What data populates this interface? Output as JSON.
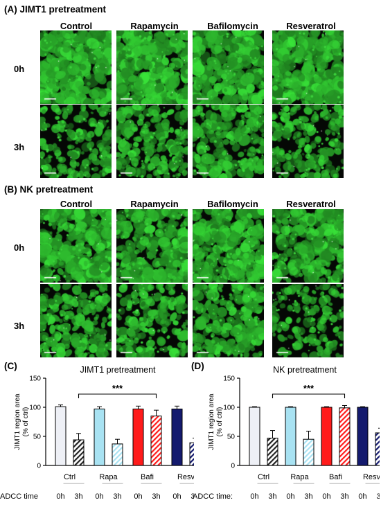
{
  "panels": [
    {
      "letter": "(A)",
      "title": "JIMT1 pretreatment",
      "columns": [
        "Control",
        "Rapamycin",
        "Bafilomycin",
        "Resveratrol"
      ],
      "rows": [
        "0h",
        "3h"
      ],
      "images": [
        [
          {
            "cell_density": 0.85
          },
          {
            "cell_density": 0.82
          },
          {
            "cell_density": 0.78
          },
          {
            "cell_density": 0.8
          }
        ],
        [
          {
            "cell_density": 0.35
          },
          {
            "cell_density": 0.42
          },
          {
            "cell_density": 0.5
          },
          {
            "cell_density": 0.35
          }
        ]
      ]
    },
    {
      "letter": "(B)",
      "title": "NK pretreatment",
      "columns": [
        "Control",
        "Rapamycin",
        "Bafilomycin",
        "Resveratrol"
      ],
      "rows": [
        "0h",
        "3h"
      ],
      "images": [
        [
          {
            "cell_density": 0.75
          },
          {
            "cell_density": 0.72
          },
          {
            "cell_density": 0.75
          },
          {
            "cell_density": 0.65
          }
        ],
        [
          {
            "cell_density": 0.45
          },
          {
            "cell_density": 0.4
          },
          {
            "cell_density": 0.55
          },
          {
            "cell_density": 0.28
          }
        ]
      ]
    }
  ],
  "colors": {
    "ctrl": "#eef0f6",
    "rapa": "#a8e2f2",
    "bafi": "#ff1b1b",
    "resv": "#141a6e",
    "fluorescence": "#3cd23c"
  },
  "chart_data": [
    {
      "type": "bar",
      "letter": "(C)",
      "title": "JIMT1 pretreatment",
      "ylabel": "JIMT1 region area (% of ctrl)",
      "ylim": [
        0,
        150
      ],
      "yticks": [
        0,
        50,
        100,
        150
      ],
      "groups": [
        "Ctrl",
        "Rapa",
        "Bafi",
        "Resv"
      ],
      "times": [
        "0h",
        "3h"
      ],
      "xtitle": "ADCC time",
      "values": [
        [
          101,
          44
        ],
        [
          97,
          37
        ],
        [
          97,
          85
        ],
        [
          97,
          39
        ]
      ],
      "errors": [
        [
          3,
          11
        ],
        [
          4,
          8
        ],
        [
          5,
          10
        ],
        [
          5,
          8
        ]
      ],
      "significance": {
        "label": "***",
        "from": [
          0,
          1
        ],
        "to": [
          2,
          1
        ]
      }
    },
    {
      "type": "bar",
      "letter": "(D)",
      "title": "NK pretreatment",
      "ylabel": "JIMT1 region area (% of ctrl)",
      "ylim": [
        0,
        150
      ],
      "yticks": [
        0,
        50,
        100,
        150
      ],
      "groups": [
        "Ctrl",
        "Rapa",
        "Bafi",
        "Resv"
      ],
      "times": [
        "0h",
        "3h"
      ],
      "xtitle": "ADCC time:",
      "values": [
        [
          100,
          47
        ],
        [
          100,
          45
        ],
        [
          100,
          99
        ],
        [
          100,
          56
        ]
      ],
      "errors": [
        [
          1,
          13
        ],
        [
          1,
          14
        ],
        [
          1,
          4
        ],
        [
          1,
          8
        ]
      ],
      "significance": {
        "label": "***",
        "from": [
          0,
          1
        ],
        "to": [
          2,
          1
        ]
      }
    }
  ]
}
